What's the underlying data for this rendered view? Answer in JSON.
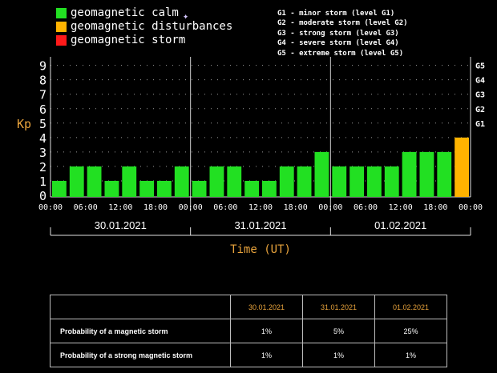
{
  "legend": {
    "items": [
      {
        "label": "geomagnetic calm",
        "color": "#22e022"
      },
      {
        "label": "geomagnetic disturbances",
        "color": "#ffb300"
      },
      {
        "label": "geomagnetic storm",
        "color": "#ff1a1a"
      }
    ],
    "scale_list": [
      "G1 - minor storm (level G1)",
      "G2 - moderate storm (level G2)",
      "G3 - strong storm (level G3)",
      "G4 - severe storm (level G4)",
      "G5 - extreme storm (level G5)"
    ]
  },
  "chart_data": {
    "type": "bar",
    "ylabel": "Kp",
    "xlabel": "Time (UT)",
    "ylim": [
      0,
      9
    ],
    "y_ticks": [
      "0",
      "1",
      "2",
      "3",
      "4",
      "5",
      "6",
      "7",
      "8",
      "9"
    ],
    "g_scale": [
      {
        "label": "G1",
        "kp": 5
      },
      {
        "label": "G2",
        "kp": 6
      },
      {
        "label": "G3",
        "kp": 7
      },
      {
        "label": "G4",
        "kp": 8
      },
      {
        "label": "G5",
        "kp": 9
      }
    ],
    "x_ticks": [
      "00:00",
      "06:00",
      "12:00",
      "18:00",
      "00:00",
      "06:00",
      "12:00",
      "18:00",
      "00:00",
      "06:00",
      "12:00",
      "18:00",
      "00:00"
    ],
    "days": [
      "30.01.2021",
      "31.01.2021",
      "01.02.2021"
    ],
    "series": [
      {
        "values": [
          1,
          2,
          2,
          1,
          2,
          1,
          1,
          2,
          1,
          2,
          2,
          1,
          1,
          2,
          2,
          3,
          2,
          2,
          2,
          2,
          3,
          3,
          3,
          4
        ],
        "colors": [
          "#22e022",
          "#22e022",
          "#22e022",
          "#22e022",
          "#22e022",
          "#22e022",
          "#22e022",
          "#22e022",
          "#22e022",
          "#22e022",
          "#22e022",
          "#22e022",
          "#22e022",
          "#22e022",
          "#22e022",
          "#22e022",
          "#22e022",
          "#22e022",
          "#22e022",
          "#22e022",
          "#22e022",
          "#22e022",
          "#22e022",
          "#ffb300"
        ]
      }
    ],
    "grid": true
  },
  "table": {
    "headers": [
      "30.01.2021",
      "31.01.2021",
      "01.02.2021"
    ],
    "rows": [
      {
        "label": "Probability of a magnetic storm",
        "values": [
          "1%",
          "5%",
          "25%"
        ]
      },
      {
        "label": "Probability of a strong magnetic storm",
        "values": [
          "1%",
          "1%",
          "1%"
        ]
      }
    ]
  }
}
